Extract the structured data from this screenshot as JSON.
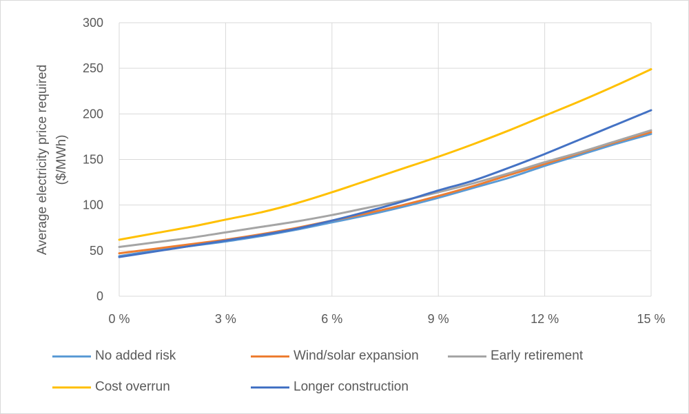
{
  "chart_data": {
    "type": "line",
    "title": "",
    "xlabel": "",
    "ylabel_lines": [
      "Average electricity price required",
      "($/MWh)"
    ],
    "x": [
      0,
      1,
      2,
      3,
      4,
      5,
      6,
      7,
      8,
      9,
      10,
      11,
      12,
      13,
      14,
      15
    ],
    "xticks": [
      0,
      3,
      6,
      9,
      12,
      15
    ],
    "xtick_labels": [
      "0 %",
      "3 %",
      "6 %",
      "9 %",
      "12 %",
      "15 %"
    ],
    "yticks": [
      0,
      50,
      100,
      150,
      200,
      250,
      300
    ],
    "ytick_labels": [
      "0",
      "50",
      "100",
      "150",
      "200",
      "250",
      "300"
    ],
    "xlim": [
      0,
      15
    ],
    "ylim": [
      0,
      300
    ],
    "grid": "vertical-and-horizontal",
    "legend_position": "bottom",
    "series": [
      {
        "name": "No added risk",
        "color": "#5b9bd5",
        "values": [
          44,
          50,
          55,
          60,
          66,
          73,
          81,
          89,
          98,
          108,
          119,
          130,
          143,
          155,
          167,
          178
        ]
      },
      {
        "name": "Wind/solar expansion",
        "color": "#ed7d31",
        "values": [
          47,
          52,
          57,
          62,
          68,
          75,
          83,
          91,
          100,
          110,
          121,
          133,
          145,
          157,
          169,
          180
        ]
      },
      {
        "name": "Early retirement",
        "color": "#a5a5a5",
        "values": [
          54,
          59,
          64,
          70,
          76,
          82,
          89,
          97,
          105,
          114,
          124,
          135,
          147,
          158,
          170,
          182
        ]
      },
      {
        "name": "Cost overrun",
        "color": "#ffc000",
        "values": [
          62,
          69,
          76,
          84,
          92,
          102,
          114,
          127,
          140,
          153,
          167,
          182,
          198,
          214,
          231,
          249
        ]
      },
      {
        "name": "Longer construction",
        "color": "#4472c4",
        "values": [
          43,
          49,
          55,
          61,
          67,
          74,
          83,
          93,
          104,
          116,
          127,
          141,
          156,
          172,
          188,
          204
        ]
      }
    ]
  }
}
